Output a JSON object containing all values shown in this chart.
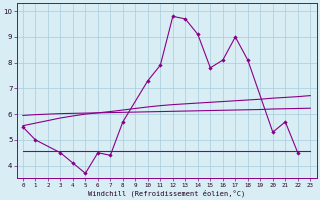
{
  "background_color": "#d8eef4",
  "line_color": "#880088",
  "grid_color": "#aaccdd",
  "xlabel": "Windchill (Refroidissement éolien,°C)",
  "ylim": [
    3.5,
    10.3
  ],
  "xlim": [
    -0.5,
    23.5
  ],
  "yticks": [
    4,
    5,
    6,
    7,
    8,
    9,
    10
  ],
  "xticks": [
    0,
    1,
    2,
    3,
    4,
    5,
    6,
    7,
    8,
    9,
    10,
    11,
    12,
    13,
    14,
    15,
    16,
    17,
    18,
    19,
    20,
    21,
    22,
    23
  ],
  "s1_x": [
    0,
    1,
    3,
    4,
    5,
    6,
    7,
    8,
    10,
    11,
    12,
    13,
    14,
    15,
    16,
    17,
    18,
    20,
    21,
    22
  ],
  "s1_y": [
    5.5,
    5.0,
    4.5,
    4.1,
    3.7,
    4.5,
    4.4,
    5.7,
    7.3,
    7.9,
    9.8,
    9.7,
    9.1,
    7.8,
    8.1,
    9.0,
    8.1,
    5.3,
    5.7,
    4.5
  ],
  "s2_x": [
    0,
    1,
    2,
    3,
    4,
    5,
    6,
    7,
    8,
    9,
    10,
    11,
    12,
    13,
    14,
    15,
    16,
    17,
    18,
    19,
    20,
    21,
    22,
    23
  ],
  "s2_y": [
    5.55,
    5.65,
    5.75,
    5.85,
    5.93,
    6.0,
    6.05,
    6.1,
    6.16,
    6.22,
    6.28,
    6.33,
    6.37,
    6.4,
    6.43,
    6.46,
    6.49,
    6.52,
    6.55,
    6.58,
    6.62,
    6.65,
    6.68,
    6.72
  ],
  "s3_x": [
    0,
    1,
    2,
    3,
    4,
    5,
    6,
    7,
    8,
    9,
    10,
    11,
    12,
    13,
    14,
    15,
    16,
    17,
    18,
    19,
    20,
    21,
    22,
    23
  ],
  "s3_y": [
    5.95,
    5.98,
    6.0,
    6.02,
    6.03,
    6.04,
    6.05,
    6.06,
    6.07,
    6.08,
    6.09,
    6.1,
    6.11,
    6.12,
    6.13,
    6.14,
    6.15,
    6.16,
    6.17,
    6.18,
    6.2,
    6.21,
    6.22,
    6.23
  ],
  "s4_x": [
    0,
    1,
    2,
    3,
    4,
    5,
    6,
    7,
    8,
    9,
    10,
    11,
    12,
    13,
    14,
    15,
    16,
    17,
    18,
    19,
    20,
    21,
    22,
    23
  ],
  "s4_y": [
    4.55,
    4.55,
    4.55,
    4.55,
    4.55,
    4.55,
    4.55,
    4.55,
    4.55,
    4.55,
    4.55,
    4.55,
    4.55,
    4.55,
    4.55,
    4.55,
    4.55,
    4.55,
    4.55,
    4.55,
    4.55,
    4.55,
    4.55,
    4.55
  ]
}
